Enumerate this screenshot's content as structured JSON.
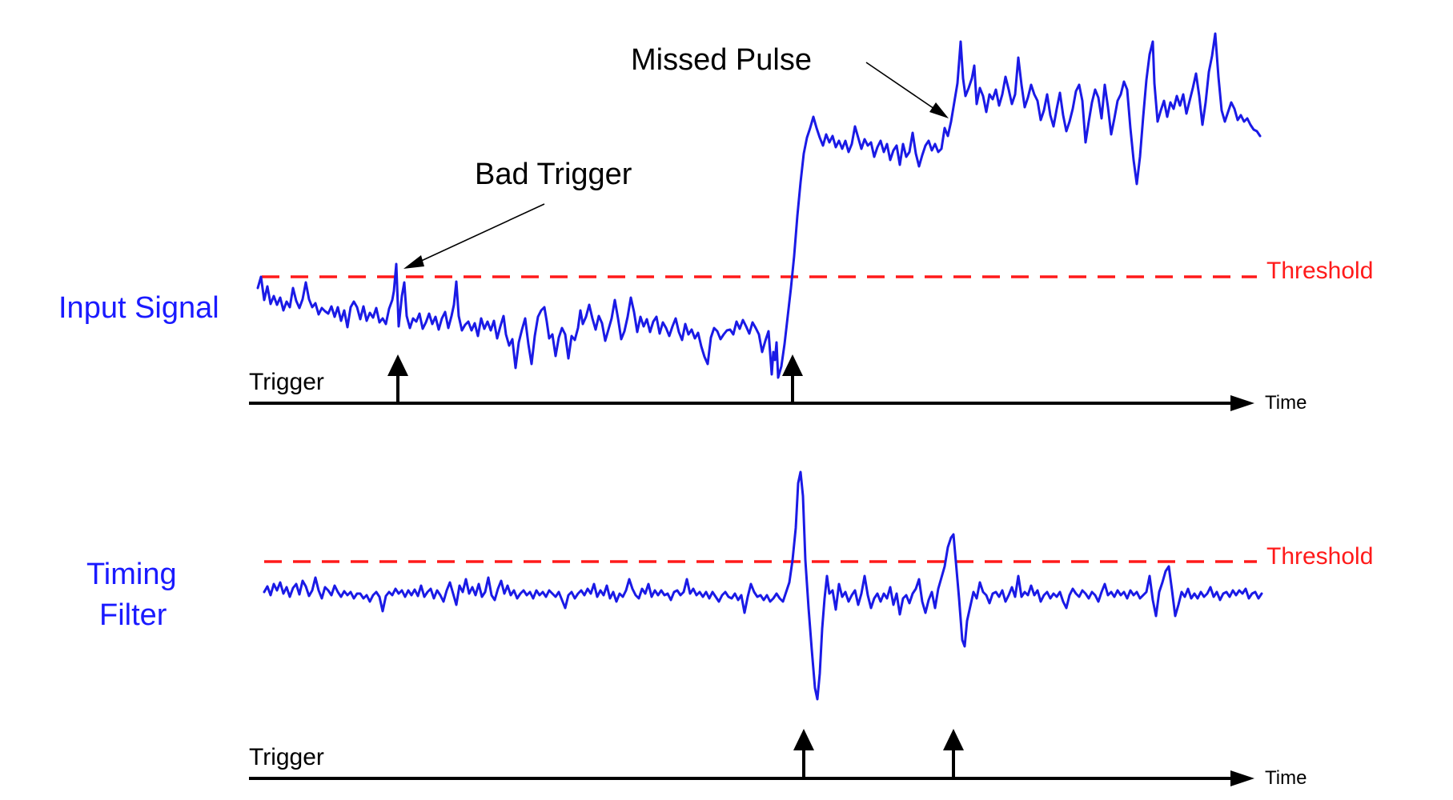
{
  "labels": {
    "input_signal": "Input Signal",
    "timing_filter_line1": "Timing",
    "timing_filter_line2": "Filter",
    "threshold_top": "Threshold",
    "threshold_bottom": "Threshold",
    "trigger_top": "Trigger",
    "trigger_bottom": "Trigger",
    "time_top": "Time",
    "time_bottom": "Time",
    "bad_trigger": "Bad Trigger",
    "missed_pulse": "Missed Pulse"
  },
  "colors": {
    "signal": "#1a1ae6",
    "threshold": "#ff1a1a",
    "label_blue": "#1a1aff",
    "axis": "#000000"
  }
}
